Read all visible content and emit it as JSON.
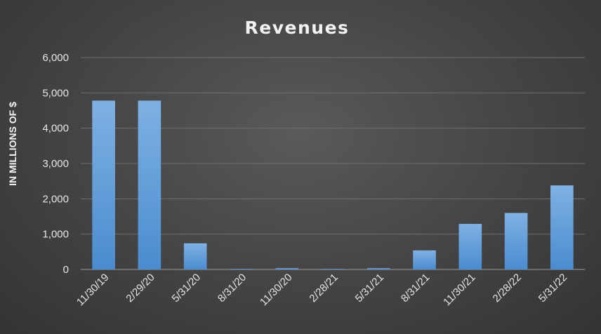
{
  "chart_data": {
    "type": "bar",
    "title": "Revenues",
    "xlabel": "",
    "ylabel": "IN MILLIONS OF $",
    "categories": [
      "11/30/19",
      "2/29/20",
      "5/31/20",
      "8/31/20",
      "11/30/20",
      "2/28/21",
      "5/31/21",
      "8/31/21",
      "11/30/21",
      "2/28/22",
      "5/31/22"
    ],
    "values": [
      4780,
      4780,
      740,
      15,
      35,
      15,
      35,
      540,
      1290,
      1600,
      2380
    ],
    "ylim": [
      0,
      6000
    ],
    "yticks": [
      0,
      1000,
      2000,
      3000,
      4000,
      5000,
      6000
    ],
    "ytick_labels": [
      "0",
      "1,000",
      "2,000",
      "3,000",
      "4,000",
      "5,000",
      "6,000"
    ],
    "grid": true,
    "legend": "none",
    "bar_color": "#5b9bd5"
  }
}
